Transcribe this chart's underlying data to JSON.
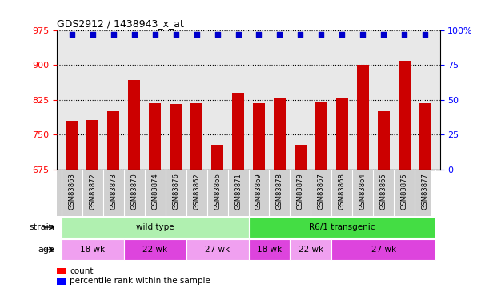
{
  "title": "GDS2912 / 1438943_x_at",
  "samples": [
    "GSM83863",
    "GSM83872",
    "GSM83873",
    "GSM83870",
    "GSM83874",
    "GSM83876",
    "GSM83862",
    "GSM83866",
    "GSM83871",
    "GSM83869",
    "GSM83878",
    "GSM83879",
    "GSM83867",
    "GSM83868",
    "GSM83864",
    "GSM83865",
    "GSM83875",
    "GSM83877"
  ],
  "counts": [
    780,
    782,
    800,
    868,
    818,
    815,
    818,
    728,
    840,
    818,
    830,
    728,
    820,
    830,
    900,
    800,
    908,
    818
  ],
  "percentiles": [
    97,
    97,
    97,
    97,
    97,
    97,
    97,
    97,
    97,
    97,
    97,
    97,
    97,
    97,
    97,
    97,
    97,
    97
  ],
  "ylim_left": [
    675,
    975
  ],
  "ylim_right": [
    0,
    100
  ],
  "yticks_left": [
    675,
    750,
    825,
    900,
    975
  ],
  "yticks_right": [
    0,
    25,
    50,
    75,
    100
  ],
  "bar_color": "#cc0000",
  "dot_color": "#0000cc",
  "plot_bg_color": "#e8e8e8",
  "strain_row": [
    {
      "label": "wild type",
      "start": 0,
      "end": 9,
      "color": "#b0f0b0"
    },
    {
      "label": "R6/1 transgenic",
      "start": 9,
      "end": 18,
      "color": "#44dd44"
    }
  ],
  "age_row": [
    {
      "label": "18 wk",
      "start": 0,
      "end": 3,
      "color": "#f0a0f0"
    },
    {
      "label": "22 wk",
      "start": 3,
      "end": 6,
      "color": "#dd44dd"
    },
    {
      "label": "27 wk",
      "start": 6,
      "end": 9,
      "color": "#f0a0f0"
    },
    {
      "label": "18 wk",
      "start": 9,
      "end": 11,
      "color": "#dd44dd"
    },
    {
      "label": "22 wk",
      "start": 11,
      "end": 13,
      "color": "#f0a0f0"
    },
    {
      "label": "27 wk",
      "start": 13,
      "end": 18,
      "color": "#dd44dd"
    }
  ],
  "legend_count_label": "count",
  "legend_pct_label": "percentile rank within the sample",
  "strain_label": "strain",
  "age_label": "age"
}
